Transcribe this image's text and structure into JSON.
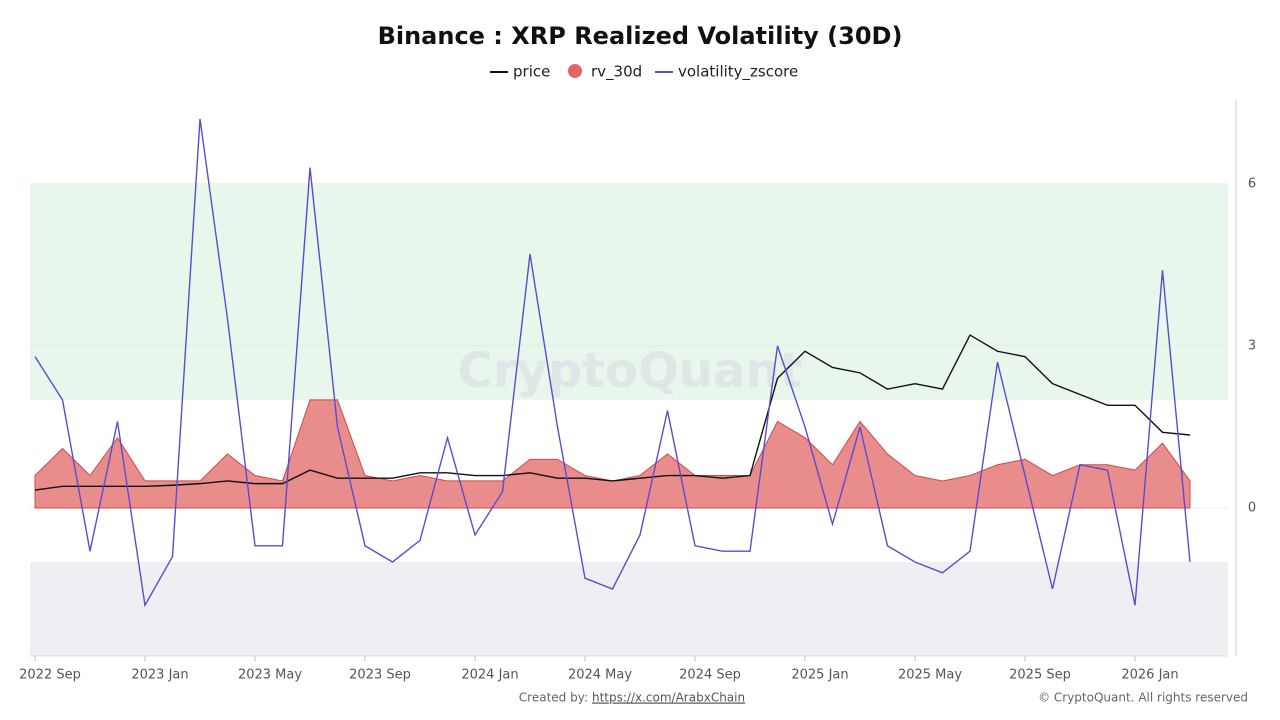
{
  "chart_data": {
    "type": "line",
    "title": "Binance : XRP Realized Volatility (30D)",
    "watermark": "CryptoQuant",
    "credit_label": "Created by:",
    "credit_link": "https://x.com/ArabxChain",
    "copyright": "© CryptoQuant. All rights reserved",
    "x": [
      "2022-09",
      "2022-10",
      "2022-11",
      "2022-12",
      "2023-01",
      "2023-02",
      "2023-03",
      "2023-04",
      "2023-05",
      "2023-06",
      "2023-07",
      "2023-08",
      "2023-09",
      "2023-10",
      "2023-11",
      "2023-12",
      "2024-01",
      "2024-02",
      "2024-03",
      "2024-04",
      "2024-05",
      "2024-06",
      "2024-07",
      "2024-08",
      "2024-09",
      "2024-10",
      "2024-11",
      "2024-12",
      "2025-01",
      "2025-02",
      "2025-03",
      "2025-04",
      "2025-05",
      "2025-06",
      "2025-07",
      "2025-08",
      "2025-09",
      "2025-10",
      "2025-11",
      "2025-12",
      "2026-01",
      "2026-02",
      "2026-03"
    ],
    "xlim": [
      "2022-09",
      "2026-03"
    ],
    "xticks": [
      {
        "value": "2022-09",
        "label": "2022 Sep"
      },
      {
        "value": "2023-01",
        "label": "2023 Jan"
      },
      {
        "value": "2023-05",
        "label": "2023 May"
      },
      {
        "value": "2023-09",
        "label": "2023 Sep"
      },
      {
        "value": "2024-01",
        "label": "2024 Jan"
      },
      {
        "value": "2024-05",
        "label": "2024 May"
      },
      {
        "value": "2024-09",
        "label": "2024 Sep"
      },
      {
        "value": "2025-01",
        "label": "2025 Jan"
      },
      {
        "value": "2025-05",
        "label": "2025 May"
      },
      {
        "value": "2025-09",
        "label": "2025 Sep"
      },
      {
        "value": "2026-01",
        "label": "2026 Jan"
      }
    ],
    "ylim": [
      -2.74,
      7.55
    ],
    "yticks": [
      0,
      3,
      6
    ],
    "zones": [
      {
        "from": 2,
        "to": 6,
        "color": "#e8f6ec"
      },
      {
        "from": -1,
        "to": -2.74,
        "color": "#efeff3"
      }
    ],
    "series": [
      {
        "name": "price",
        "type": "line",
        "color": "#111111",
        "values": [
          0.33,
          0.4,
          0.4,
          0.4,
          0.4,
          0.42,
          0.45,
          0.5,
          0.45,
          0.45,
          0.7,
          0.55,
          0.55,
          0.55,
          0.65,
          0.65,
          0.6,
          0.6,
          0.65,
          0.55,
          0.55,
          0.5,
          0.55,
          0.6,
          0.6,
          0.55,
          0.6,
          2.4,
          2.9,
          2.6,
          2.5,
          2.2,
          2.3,
          2.2,
          3.2,
          2.9,
          2.8,
          2.3,
          2.1,
          1.9,
          1.9,
          1.4,
          1.35
        ]
      },
      {
        "name": "rv_30d",
        "type": "area",
        "color": "#e06666",
        "values": [
          0.6,
          1.1,
          0.6,
          1.3,
          0.5,
          0.5,
          0.5,
          1.0,
          0.6,
          0.5,
          2.0,
          2.0,
          0.6,
          0.5,
          0.6,
          0.5,
          0.5,
          0.5,
          0.9,
          0.9,
          0.6,
          0.5,
          0.6,
          1.0,
          0.6,
          0.6,
          0.6,
          1.6,
          1.3,
          0.8,
          1.6,
          1.0,
          0.6,
          0.5,
          0.6,
          0.8,
          0.9,
          0.6,
          0.8,
          0.8,
          0.7,
          1.2,
          0.5
        ]
      },
      {
        "name": "volatility_zscore",
        "type": "line",
        "color": "#5b4ccf",
        "values": [
          2.8,
          2.0,
          -0.8,
          1.6,
          -1.8,
          -0.9,
          7.2,
          3.5,
          -0.7,
          -0.7,
          6.3,
          1.5,
          -0.7,
          -1.0,
          -0.6,
          1.3,
          -0.5,
          0.3,
          4.7,
          1.5,
          -1.3,
          -1.5,
          -0.5,
          1.8,
          -0.7,
          -0.8,
          -0.8,
          3.0,
          1.5,
          -0.3,
          1.5,
          -0.7,
          -1.0,
          -1.2,
          -0.8,
          2.7,
          0.6,
          -1.5,
          0.8,
          0.7,
          -1.8,
          4.4,
          -1.0
        ]
      }
    ]
  }
}
